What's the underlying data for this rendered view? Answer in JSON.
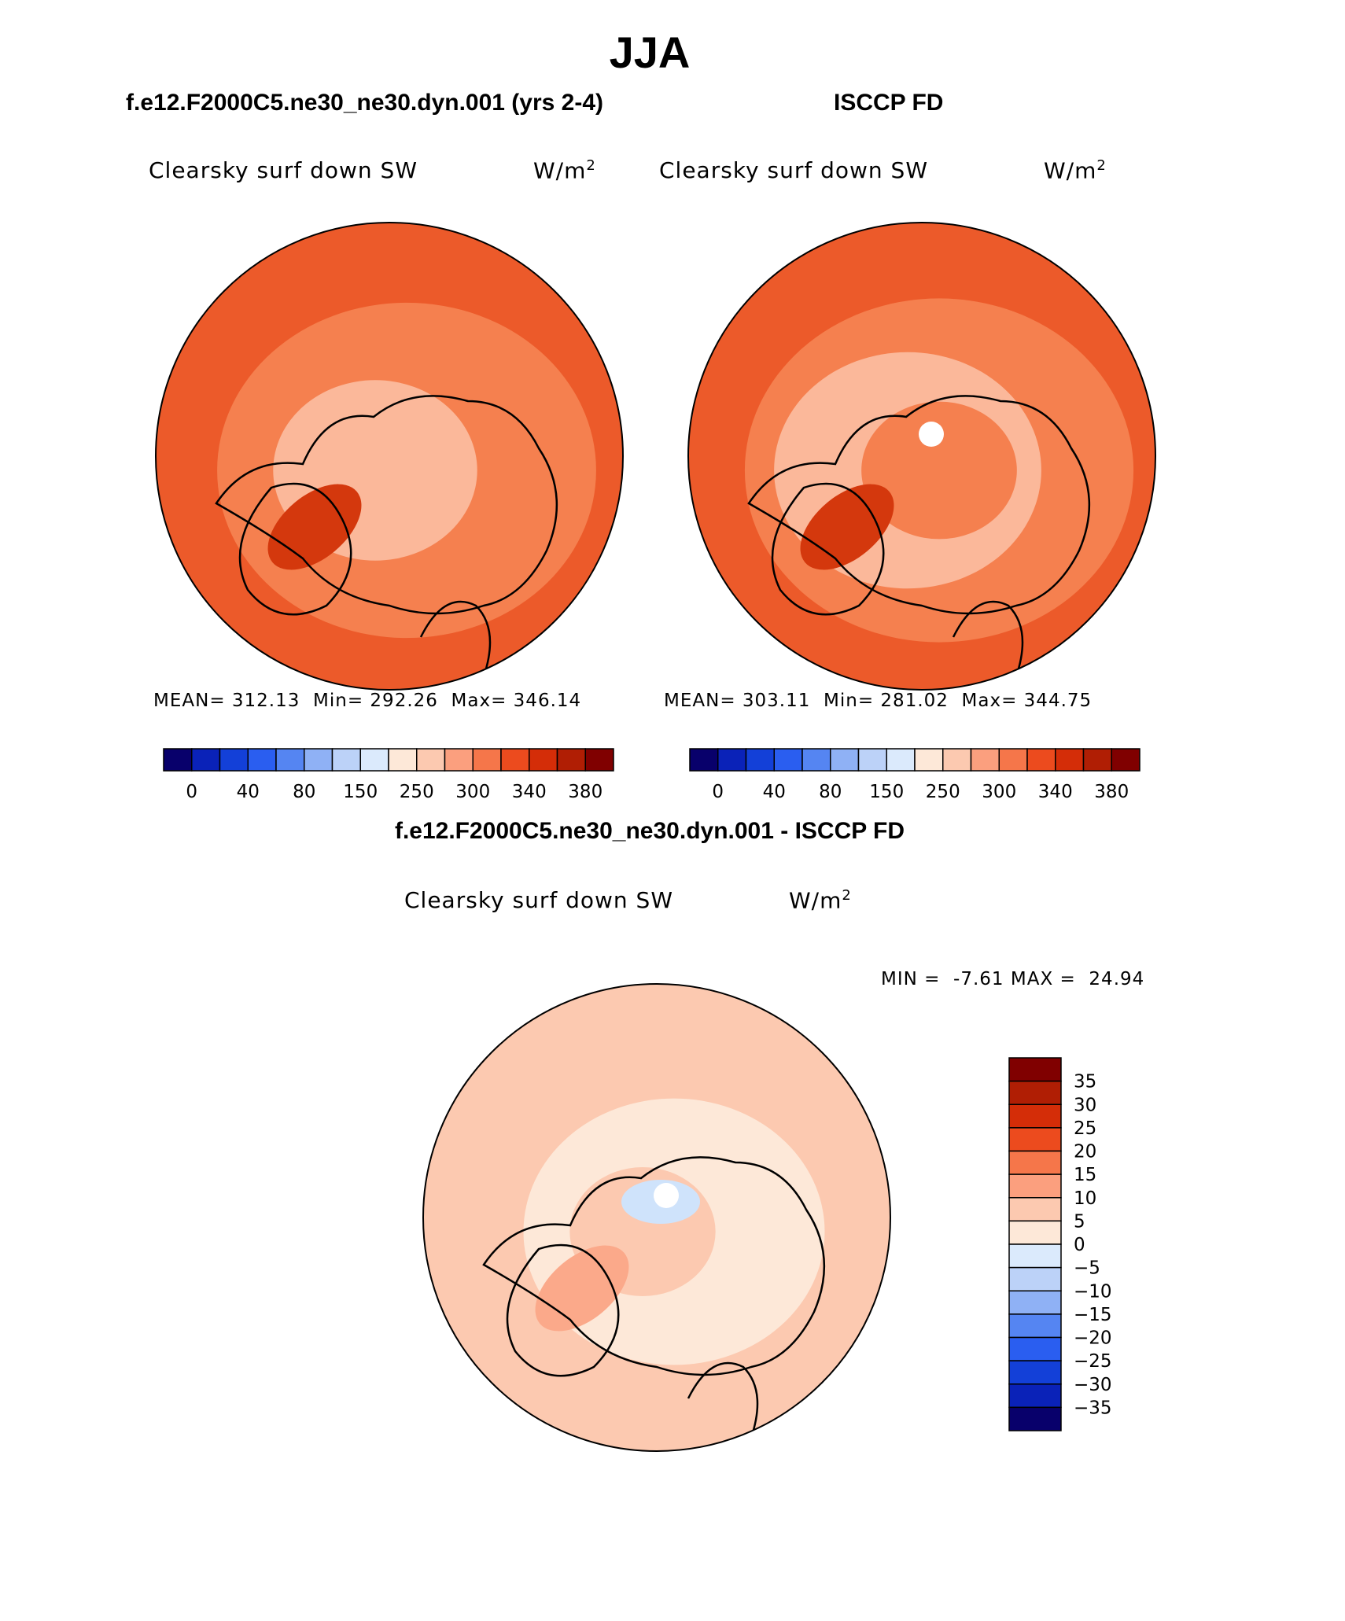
{
  "page_title": "JJA",
  "left_panel_title": "f.e12.F2000C5.ne30_ne30.dyn.001 (yrs 2-4)",
  "right_panel_title": "ISCCP FD",
  "diff_panel_title": "f.e12.F2000C5.ne30_ne30.dyn.001 - ISCCP FD",
  "colors": {
    "abs_palette": [
      "#08006b",
      "#0a22b8",
      "#1340d8",
      "#2a5ef0",
      "#5585f2",
      "#8fb1f5",
      "#bcd2f8",
      "#dbeafc",
      "#fde8d8",
      "#fcc9b0",
      "#fb9f7e",
      "#f5764a",
      "#ec4b1e",
      "#d42d08",
      "#b01e04",
      "#800000"
    ],
    "diff_palette": [
      "#08006b",
      "#0a22b8",
      "#1340d8",
      "#2a5ef0",
      "#5585f2",
      "#8fb1f5",
      "#bcd2f8",
      "#dbeafc",
      "#fde8d8",
      "#fcc9b0",
      "#fb9f7e",
      "#f5764a",
      "#ec4b1e",
      "#d42d08",
      "#b01e04",
      "#800000"
    ],
    "map_dark": "#ec5a2a",
    "map_mid": "#f5804f",
    "map_light": "#fbb89a",
    "map_deep": "#d4380d",
    "diff_base": "#fcc9b0",
    "diff_light": "#fde8d8",
    "diff_mid": "#fba98a",
    "diff_blue": "#cfe3fb"
  },
  "chart_data": [
    {
      "type": "heatmap",
      "projection": "north-polar-stereographic",
      "title": "f.e12.F2000C5.ne30_ne30.dyn.001 (yrs 2-4)",
      "variable": "Clearsky surf down SW",
      "units_base": "W/m",
      "units_sup": "2",
      "stats": {
        "mean_label": "MEAN=",
        "mean": "312.13",
        "min_label": "Min=",
        "min": "292.26",
        "max_label": "Max=",
        "max": "346.14"
      },
      "colorbar_orientation": "horizontal",
      "colorbar_labels": [
        "0",
        "40",
        "80",
        "150",
        "250",
        "300",
        "340",
        "380"
      ]
    },
    {
      "type": "heatmap",
      "projection": "north-polar-stereographic",
      "title": "ISCCP FD",
      "variable": "Clearsky surf down SW",
      "units_base": "W/m",
      "units_sup": "2",
      "stats": {
        "mean_label": "MEAN=",
        "mean": "303.11",
        "min_label": "Min=",
        "min": "281.02",
        "max_label": "Max=",
        "max": "344.75"
      },
      "colorbar_orientation": "horizontal",
      "colorbar_labels": [
        "0",
        "40",
        "80",
        "150",
        "250",
        "300",
        "340",
        "380"
      ]
    },
    {
      "type": "heatmap",
      "projection": "north-polar-stereographic",
      "title": "f.e12.F2000C5.ne30_ne30.dyn.001 - ISCCP FD",
      "variable": "Clearsky surf down SW",
      "units_base": "W/m",
      "units_sup": "2",
      "stats": {
        "min_label": "MIN =",
        "min": "-7.61",
        "max_label": "MAX =",
        "max": "24.94"
      },
      "colorbar_orientation": "vertical",
      "colorbar_labels": [
        "35",
        "30",
        "25",
        "20",
        "15",
        "10",
        "5",
        "0",
        "−5",
        "−10",
        "−15",
        "−20",
        "−25",
        "−30",
        "−35"
      ]
    }
  ]
}
